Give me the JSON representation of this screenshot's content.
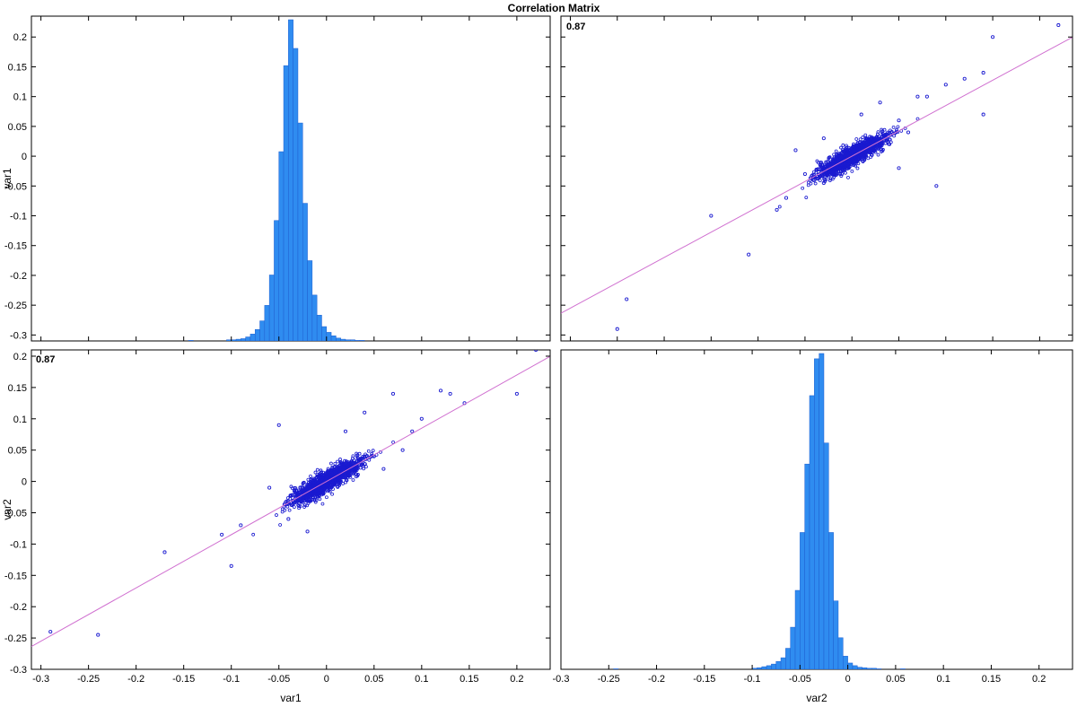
{
  "figure_title": "Correlation Matrix",
  "colors": {
    "bar_fill": "#2f8cf0",
    "bar_edge": "#1f5fd0",
    "scatter_point": "#1a1ad0",
    "fit_line": "#d070d0",
    "axis": "#000000"
  },
  "chart_data": [
    {
      "panel": "var1-var1",
      "type": "bar",
      "ylabel": "var1",
      "xlabel": "",
      "xlim": [
        -0.31,
        0.235
      ],
      "ylim": [
        -0.31,
        0.235
      ],
      "yticks": [
        "0.2",
        "0.15",
        "0.1",
        "0.05",
        "0",
        "-0.05",
        "-0.1",
        "-0.15",
        "-0.2",
        "-0.25",
        "-0.3"
      ],
      "bin_edges_start": -0.3,
      "bin_width": 0.005,
      "counts": [
        0,
        0,
        0,
        0,
        0,
        0,
        0,
        0,
        0,
        0,
        0,
        0,
        0,
        0,
        0,
        0,
        0,
        0,
        0,
        0,
        0,
        0,
        0,
        0,
        0,
        0,
        0,
        0,
        0,
        0,
        0,
        1,
        0,
        0,
        0,
        0,
        0,
        0,
        0,
        2,
        2,
        3,
        4,
        7,
        12,
        20,
        35,
        62,
        115,
        210,
        330,
        480,
        560,
        510,
        380,
        240,
        140,
        80,
        45,
        25,
        15,
        9,
        5,
        3,
        2,
        2,
        1,
        1,
        0,
        0,
        0,
        0,
        0,
        0,
        0,
        0,
        0,
        0,
        0,
        0,
        0,
        0,
        0,
        0,
        0,
        0,
        0,
        0,
        0,
        0,
        0,
        0,
        0,
        0,
        0,
        0,
        0,
        0,
        0,
        0,
        0,
        0,
        0,
        0,
        0,
        0,
        0,
        0,
        0
      ]
    },
    {
      "panel": "var2-vs-var1",
      "type": "scatter",
      "corr_label": "0.87",
      "xlim": [
        -0.31,
        0.235
      ],
      "ylim": [
        -0.31,
        0.235
      ],
      "fit": {
        "slope": 0.85,
        "intercept": 0.0
      },
      "points": [
        [
          -0.24,
          -0.24
        ],
        [
          -0.25,
          -0.29
        ],
        [
          -0.15,
          -0.1
        ],
        [
          -0.11,
          -0.165
        ],
        [
          -0.05,
          -0.03
        ],
        [
          -0.04,
          -0.04
        ],
        [
          -0.03,
          -0.045
        ],
        [
          -0.02,
          -0.03
        ],
        [
          -0.01,
          0.0
        ],
        [
          0.0,
          -0.01
        ],
        [
          0.01,
          0.01
        ],
        [
          0.02,
          0.02
        ],
        [
          0.03,
          0.03
        ],
        [
          0.04,
          0.02
        ],
        [
          0.05,
          0.06
        ],
        [
          0.06,
          0.04
        ],
        [
          0.07,
          0.1
        ],
        [
          0.08,
          0.1
        ],
        [
          0.1,
          0.12
        ],
        [
          0.12,
          0.13
        ],
        [
          0.14,
          0.14
        ],
        [
          0.14,
          0.07
        ],
        [
          0.15,
          0.2
        ],
        [
          0.22,
          0.22
        ],
        [
          -0.06,
          0.01
        ],
        [
          -0.07,
          -0.07
        ],
        [
          0.09,
          -0.05
        ],
        [
          0.03,
          0.09
        ],
        [
          0.01,
          0.07
        ],
        [
          -0.03,
          0.03
        ],
        [
          0.05,
          -0.02
        ],
        [
          -0.08,
          -0.09
        ]
      ]
    },
    {
      "panel": "var1-vs-var2",
      "type": "scatter",
      "corr_label": "0.87",
      "ylabel": "var2",
      "xlabel": "var1",
      "xlim": [
        -0.31,
        0.235
      ],
      "ylim": [
        -0.3,
        0.21
      ],
      "yticks": [
        "0.2",
        "0.15",
        "0.1",
        "0.05",
        "0",
        "-0.05",
        "-0.1",
        "-0.15",
        "-0.2",
        "-0.25",
        "-0.3"
      ],
      "xticks": [
        "-0.3",
        "-0.25",
        "-0.2",
        "-0.15",
        "-0.1",
        "-0.05",
        "0",
        "0.05",
        "0.1",
        "0.15",
        "0.2"
      ],
      "fit": {
        "slope": 0.85,
        "intercept": 0.0
      },
      "points": [
        [
          -0.29,
          -0.24
        ],
        [
          -0.24,
          -0.245
        ],
        [
          -0.17,
          -0.113
        ],
        [
          -0.1,
          -0.135
        ],
        [
          -0.11,
          -0.085
        ],
        [
          -0.05,
          0.09
        ],
        [
          -0.04,
          -0.06
        ],
        [
          -0.03,
          -0.03
        ],
        [
          -0.02,
          -0.02
        ],
        [
          -0.01,
          -0.01
        ],
        [
          0.0,
          0.0
        ],
        [
          0.01,
          0.01
        ],
        [
          0.02,
          0.015
        ],
        [
          0.03,
          0.03
        ],
        [
          0.04,
          0.04
        ],
        [
          0.05,
          0.04
        ],
        [
          0.07,
          0.14
        ],
        [
          0.08,
          0.05
        ],
        [
          0.09,
          0.08
        ],
        [
          0.1,
          0.1
        ],
        [
          0.12,
          0.145
        ],
        [
          0.13,
          0.14
        ],
        [
          0.145,
          0.125
        ],
        [
          0.2,
          0.14
        ],
        [
          0.22,
          0.21
        ],
        [
          0.04,
          0.11
        ],
        [
          -0.02,
          -0.08
        ],
        [
          -0.09,
          -0.07
        ],
        [
          0.06,
          0.02
        ],
        [
          0.02,
          0.08
        ],
        [
          -0.06,
          -0.01
        ]
      ]
    },
    {
      "panel": "var2-var2",
      "type": "bar",
      "xlabel": "var2",
      "xlim": [
        -0.3,
        0.235
      ],
      "xticks": [
        "-0.3",
        "-0.25",
        "-0.2",
        "-0.15",
        "-0.1",
        "-0.05",
        "0",
        "0.05",
        "0.1",
        "0.15",
        "0.2"
      ],
      "bin_edges_start": -0.3,
      "bin_width": 0.005,
      "counts": [
        0,
        0,
        0,
        0,
        0,
        0,
        0,
        0,
        0,
        0,
        0,
        1,
        0,
        0,
        0,
        0,
        0,
        0,
        0,
        0,
        0,
        0,
        0,
        0,
        0,
        0,
        0,
        0,
        0,
        0,
        0,
        0,
        0,
        0,
        0,
        0,
        0,
        0,
        0,
        0,
        2,
        3,
        5,
        7,
        10,
        15,
        22,
        40,
        80,
        150,
        260,
        390,
        520,
        590,
        600,
        430,
        260,
        130,
        60,
        25,
        12,
        7,
        4,
        3,
        2,
        2,
        1,
        0,
        0,
        0,
        0,
        1,
        0,
        0,
        0,
        0,
        0,
        0,
        0,
        0,
        0,
        0,
        0,
        0,
        0,
        0,
        0,
        0,
        0,
        0,
        0,
        0,
        0,
        0,
        0,
        0,
        0,
        0,
        0,
        0,
        0,
        0,
        0,
        0,
        0,
        0,
        0
      ]
    }
  ]
}
